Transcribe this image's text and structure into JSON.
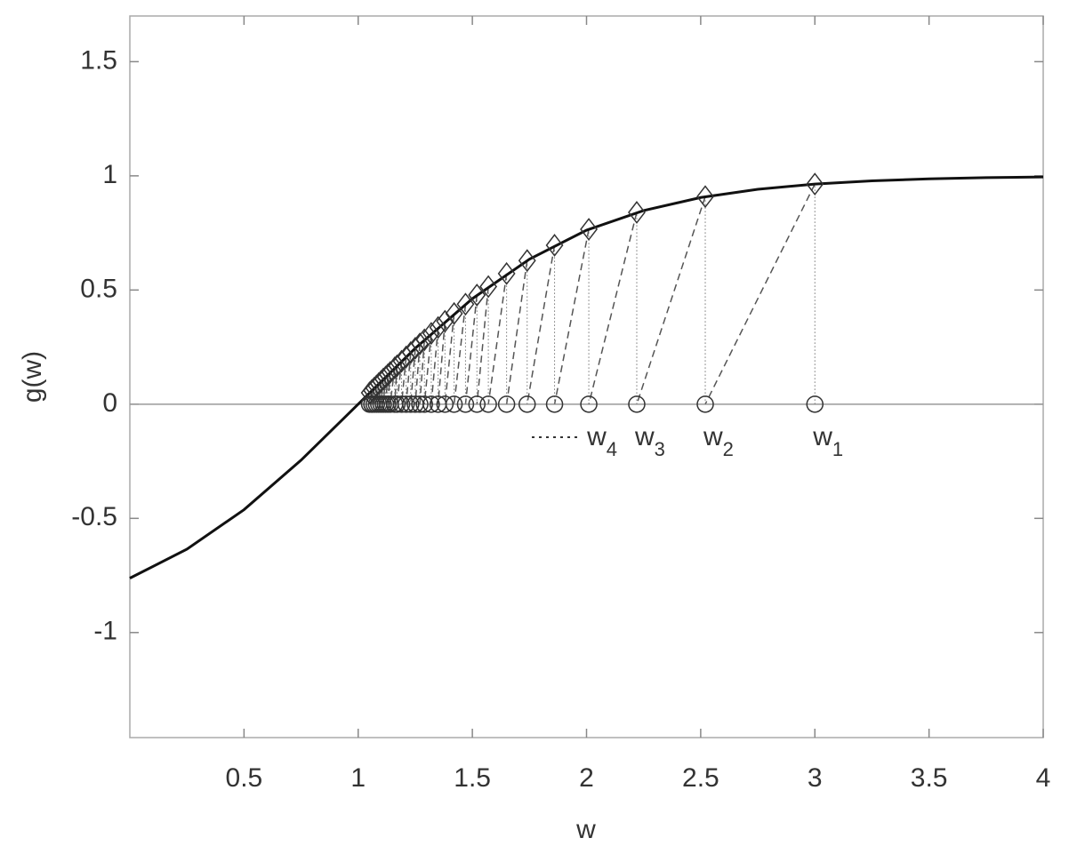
{
  "chart_data": {
    "type": "iteration",
    "xlabel": "w",
    "ylabel": "g(w)",
    "xlim": [
      0,
      4
    ],
    "ylim": [
      -1.46,
      1.7
    ],
    "xticks": [
      0.5,
      1,
      1.5,
      2,
      2.5,
      3,
      3.5,
      4
    ],
    "yticks": [
      -1,
      -0.5,
      0,
      0.5,
      1,
      1.5
    ],
    "zero_line": true,
    "curve": {
      "color": "#111111",
      "x": [
        0,
        0.25,
        0.5,
        0.75,
        1,
        1.25,
        1.5,
        1.75,
        2,
        2.25,
        2.5,
        2.75,
        3,
        3.25,
        3.5,
        3.75,
        4
      ],
      "values": [
        -0.762,
        -0.635,
        -0.462,
        -0.245,
        0,
        0.245,
        0.462,
        0.635,
        0.762,
        0.848,
        0.905,
        0.941,
        0.964,
        0.978,
        0.987,
        0.992,
        0.995
      ]
    },
    "iterates": {
      "color": "#333333",
      "x": [
        3.0,
        2.52,
        2.22,
        2.01,
        1.86,
        1.74,
        1.65,
        1.57,
        1.52,
        1.47,
        1.42,
        1.38,
        1.35,
        1.32,
        1.29,
        1.27,
        1.25,
        1.23,
        1.21,
        1.19,
        1.17,
        1.16,
        1.14,
        1.13,
        1.12,
        1.11,
        1.1,
        1.09,
        1.08,
        1.07,
        1.06,
        1.06,
        1.05
      ],
      "values": [
        0.964,
        0.909,
        0.84,
        0.766,
        0.696,
        0.629,
        0.572,
        0.515,
        0.478,
        0.438,
        0.397,
        0.363,
        0.336,
        0.31,
        0.282,
        0.264,
        0.245,
        0.226,
        0.207,
        0.188,
        0.168,
        0.159,
        0.139,
        0.129,
        0.119,
        0.11,
        0.1,
        0.09,
        0.08,
        0.07,
        0.06,
        0.06,
        0.05
      ]
    },
    "point_labels": [
      {
        "text": "w",
        "sub": "1"
      },
      {
        "text": "w",
        "sub": "2"
      },
      {
        "text": "w",
        "sub": "3"
      },
      {
        "text": "w",
        "sub": "4"
      }
    ]
  }
}
